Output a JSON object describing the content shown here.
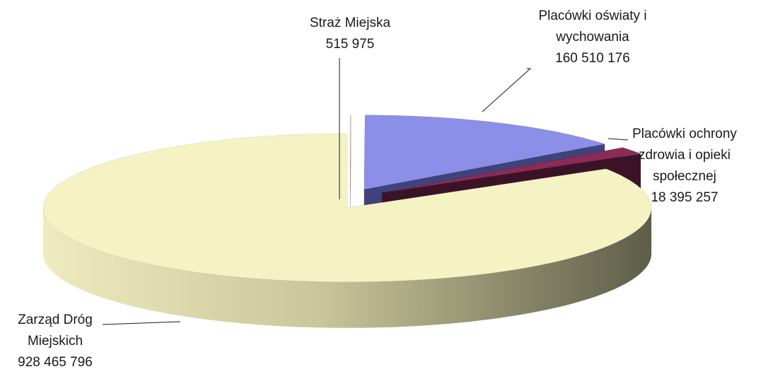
{
  "chart_data": {
    "type": "pie3d",
    "categories": [
      "Straż Miejska",
      "Placówki oświaty i wychowania",
      "Placówki ochrony zdrowia i opieki społecznej",
      "Zarząd Dróg Miejskich"
    ],
    "values": [
      515975,
      160510176,
      18395257,
      928465796
    ],
    "value_labels": [
      "515 975",
      "160 510 176",
      "18 395 257",
      "928 465 796"
    ],
    "colors": [
      "#c9c9c9",
      "#8b8fe8",
      "#8c2a58",
      "#f5f3c4"
    ]
  }
}
